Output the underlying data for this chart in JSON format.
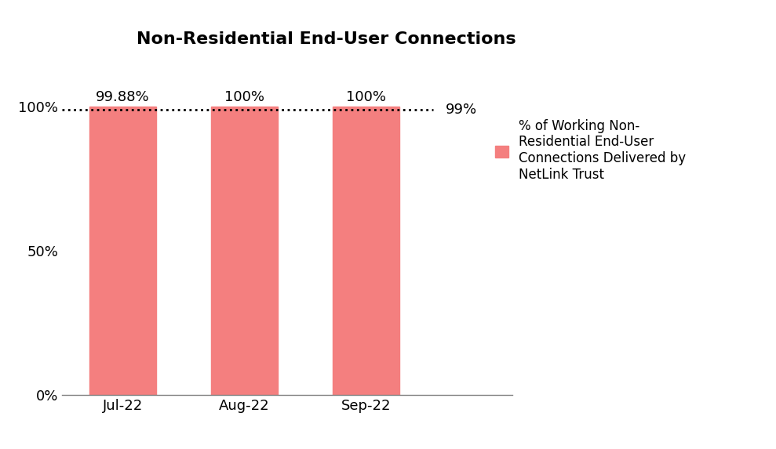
{
  "title": "Non-Residential End-User Connections",
  "categories": [
    "Jul-22",
    "Aug-22",
    "Sep-22"
  ],
  "values": [
    0.9988,
    1.0,
    1.0
  ],
  "bar_labels": [
    "99.88%",
    "100%",
    "100%"
  ],
  "bar_color": "#F47F7F",
  "ylim": [
    0,
    1.12
  ],
  "yticks": [
    0,
    0.5,
    1.0
  ],
  "ytick_labels": [
    "0%",
    "50%",
    "100%"
  ],
  "reference_line_y": 0.99,
  "reference_line_label": "99%",
  "legend_label": "% of Working Non-\nResidential End-User\nConnections Delivered by\nNetLink Trust",
  "title_fontsize": 16,
  "label_fontsize": 13,
  "tick_fontsize": 13,
  "ref_label_fontsize": 13,
  "background_color": "#ffffff"
}
